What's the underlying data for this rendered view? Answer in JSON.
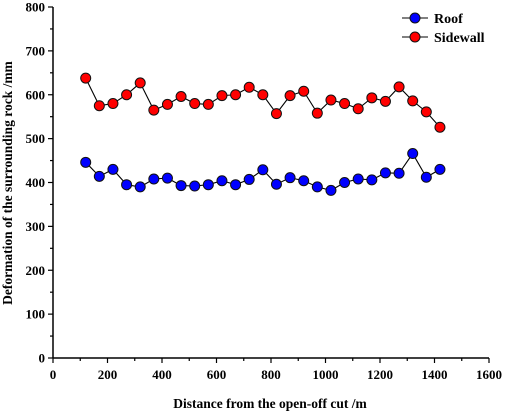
{
  "chart_data": {
    "type": "line",
    "xlabel": "Distance from the open-off cut /m",
    "ylabel": "Deformation of the surrounding rock /mm",
    "xlim": [
      0,
      1600
    ],
    "ylim": [
      0,
      800
    ],
    "xticks": [
      0,
      200,
      400,
      600,
      800,
      1000,
      1200,
      1400,
      1600
    ],
    "yticks": [
      0,
      100,
      200,
      300,
      400,
      500,
      600,
      700,
      800
    ],
    "legend_position": "top-right",
    "x": [
      120,
      170,
      220,
      270,
      320,
      370,
      420,
      470,
      520,
      570,
      620,
      670,
      720,
      770,
      820,
      870,
      920,
      970,
      1020,
      1070,
      1120,
      1170,
      1220,
      1270,
      1320,
      1370,
      1420
    ],
    "series": [
      {
        "name": "Roof",
        "color": "#0000ff",
        "marker": "circle",
        "values": [
          446,
          414,
          430,
          395,
          390,
          408,
          410,
          393,
          392,
          395,
          404,
          395,
          407,
          429,
          396,
          411,
          404,
          390,
          382,
          400,
          408,
          406,
          422,
          421,
          466,
          412,
          430
        ]
      },
      {
        "name": "Sidewall",
        "color": "#ff0000",
        "marker": "circle",
        "values": [
          638,
          575,
          580,
          600,
          627,
          565,
          578,
          596,
          580,
          578,
          598,
          600,
          617,
          600,
          557,
          598,
          608,
          558,
          588,
          580,
          568,
          593,
          585,
          618,
          586,
          561,
          526
        ]
      }
    ]
  }
}
